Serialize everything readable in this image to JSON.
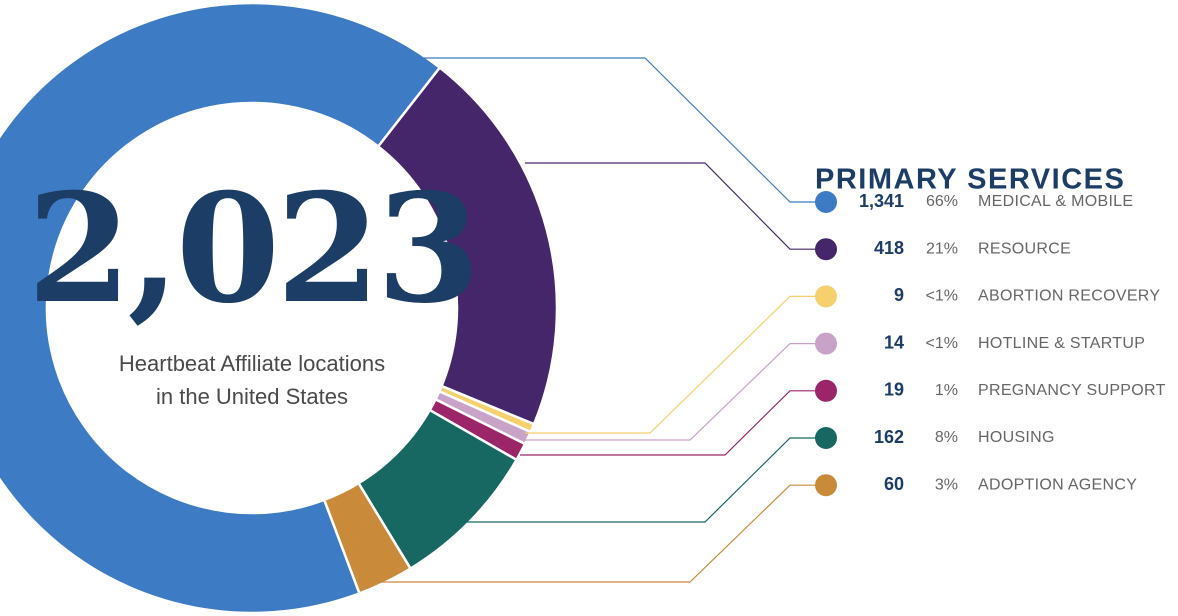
{
  "chart_data": {
    "type": "pie",
    "donut": true,
    "title": "PRIMARY SERVICES",
    "total_label": "2,023",
    "center_text": [
      "Heartbeat Affiliate locations",
      "in the United States"
    ],
    "categories": [
      "MEDICAL & MOBILE",
      "RESOURCE",
      "ABORTION RECOVERY",
      "HOTLINE & STARTUP",
      "PREGNANCY SUPPORT",
      "HOUSING",
      "ADOPTION AGENCY"
    ],
    "values": [
      1341,
      418,
      9,
      14,
      19,
      162,
      60
    ],
    "value_labels": [
      "1,341",
      "418",
      "9",
      "14",
      "19",
      "162",
      "60"
    ],
    "percent_labels": [
      "66%",
      "21%",
      "<1%",
      "<1%",
      "1%",
      "8%",
      "3%"
    ],
    "colors": [
      "#3d7cc4",
      "#45266a",
      "#f5d06c",
      "#c9a2c8",
      "#9c2468",
      "#176763",
      "#c98b3a"
    ]
  }
}
